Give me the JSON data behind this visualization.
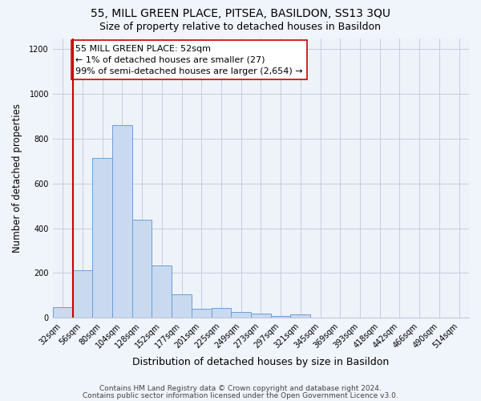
{
  "title1": "55, MILL GREEN PLACE, PITSEA, BASILDON, SS13 3QU",
  "title2": "Size of property relative to detached houses in Basildon",
  "xlabel": "Distribution of detached houses by size in Basildon",
  "ylabel": "Number of detached properties",
  "categories": [
    "32sqm",
    "56sqm",
    "80sqm",
    "104sqm",
    "128sqm",
    "152sqm",
    "177sqm",
    "201sqm",
    "225sqm",
    "249sqm",
    "273sqm",
    "297sqm",
    "321sqm",
    "345sqm",
    "369sqm",
    "393sqm",
    "418sqm",
    "442sqm",
    "466sqm",
    "490sqm",
    "514sqm"
  ],
  "values": [
    47,
    213,
    715,
    862,
    438,
    234,
    105,
    42,
    43,
    25,
    18,
    10,
    15,
    0,
    0,
    0,
    0,
    0,
    0,
    0,
    0
  ],
  "bar_color": "#c9d9f0",
  "bar_edge_color": "#6a9fd8",
  "vline_x": 0.5,
  "vline_color": "#cc0000",
  "annotation_text": "55 MILL GREEN PLACE: 52sqm\n← 1% of detached houses are smaller (27)\n99% of semi-detached houses are larger (2,654) →",
  "annotation_box_color": "#ffffff",
  "annotation_box_edge": "#cc0000",
  "ylim": [
    0,
    1250
  ],
  "yticks": [
    0,
    200,
    400,
    600,
    800,
    1000,
    1200
  ],
  "footer1": "Contains HM Land Registry data © Crown copyright and database right 2024.",
  "footer2": "Contains public sector information licensed under the Open Government Licence v3.0.",
  "background_color": "#f0f4fb",
  "plot_background_color": "#eef2f9",
  "title1_fontsize": 10,
  "title2_fontsize": 9,
  "xlabel_fontsize": 9,
  "ylabel_fontsize": 8.5,
  "tick_fontsize": 7,
  "footer_fontsize": 6.5,
  "annotation_fontsize": 8
}
